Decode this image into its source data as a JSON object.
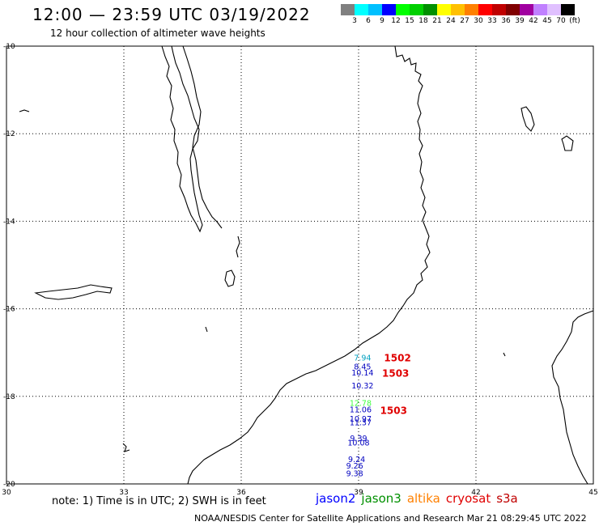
{
  "header": {
    "title": "12:00 — 23:59 UTC 03/19/2022",
    "subtitle": "12 hour collection of altimeter wave heights"
  },
  "color_scale": {
    "colors": [
      "#808080",
      "#00ffff",
      "#00c0ff",
      "#0000ff",
      "#00ff00",
      "#00d000",
      "#009000",
      "#ffff00",
      "#ffc000",
      "#ff8000",
      "#ff0000",
      "#c00000",
      "#800000",
      "#a000a0",
      "#c080ff",
      "#e0c0ff",
      "#000000"
    ],
    "labels": [
      "3",
      "6",
      "9",
      "12",
      "15",
      "18",
      "21",
      "24",
      "27",
      "30",
      "33",
      "36",
      "39",
      "42",
      "45",
      "70",
      "(ft)"
    ]
  },
  "axes": {
    "x_ticks": [
      "30",
      "33",
      "36",
      "39",
      "42",
      "45"
    ],
    "y_ticks": [
      "-10",
      "-12",
      "-14",
      "-16",
      "-18",
      "-20"
    ]
  },
  "wave_labels": [
    {
      "text": "7.94",
      "lon": 39.1,
      "lat": -17.18,
      "color": "#00a0c0"
    },
    {
      "text": "8.45",
      "lon": 39.1,
      "lat": -17.38,
      "color": "#0000c0"
    },
    {
      "text": "10.14",
      "lon": 39.1,
      "lat": -17.52,
      "color": "#0000c0"
    },
    {
      "text": "10.32",
      "lon": 39.1,
      "lat": -17.82,
      "color": "#0000c0"
    },
    {
      "text": "12.78",
      "lon": 39.05,
      "lat": -18.22,
      "color": "#40ff40"
    },
    {
      "text": "11.06",
      "lon": 39.05,
      "lat": -18.36,
      "color": "#0000c0"
    },
    {
      "text": "10.97",
      "lon": 39.05,
      "lat": -18.58,
      "color": "#0000c0"
    },
    {
      "text": "11.37",
      "lon": 39.05,
      "lat": -18.66,
      "color": "#0000c0"
    },
    {
      "text": "9.39",
      "lon": 39.0,
      "lat": -19.02,
      "color": "#0000c0"
    },
    {
      "text": "10.08",
      "lon": 39.0,
      "lat": -19.12,
      "color": "#0000c0"
    },
    {
      "text": "9.24",
      "lon": 38.95,
      "lat": -19.5,
      "color": "#0000c0"
    },
    {
      "text": "9.26",
      "lon": 38.9,
      "lat": -19.65,
      "color": "#0000c0"
    },
    {
      "text": "9.38",
      "lon": 38.9,
      "lat": -19.82,
      "color": "#0000c0"
    }
  ],
  "pass_labels": [
    {
      "text": "1502",
      "lon": 39.65,
      "lat": -17.2
    },
    {
      "text": "1503",
      "lon": 39.6,
      "lat": -17.55
    },
    {
      "text": "1503",
      "lon": 39.55,
      "lat": -18.4
    }
  ],
  "footer": {
    "note": "note: 1) Time is in UTC; 2) SWH is in feet",
    "satellites": [
      {
        "name": "jason2",
        "color": "#0000ff"
      },
      {
        "name": "jason3",
        "color": "#009000"
      },
      {
        "name": "altika",
        "color": "#ff8000"
      },
      {
        "name": "cryosat",
        "color": "#e00000"
      },
      {
        "name": "s3a",
        "color": "#c00000"
      }
    ],
    "credit": "NOAA/NESDIS Center for Satellite Applications and Research    Mar 21 08:29:45 UTC 2022"
  }
}
